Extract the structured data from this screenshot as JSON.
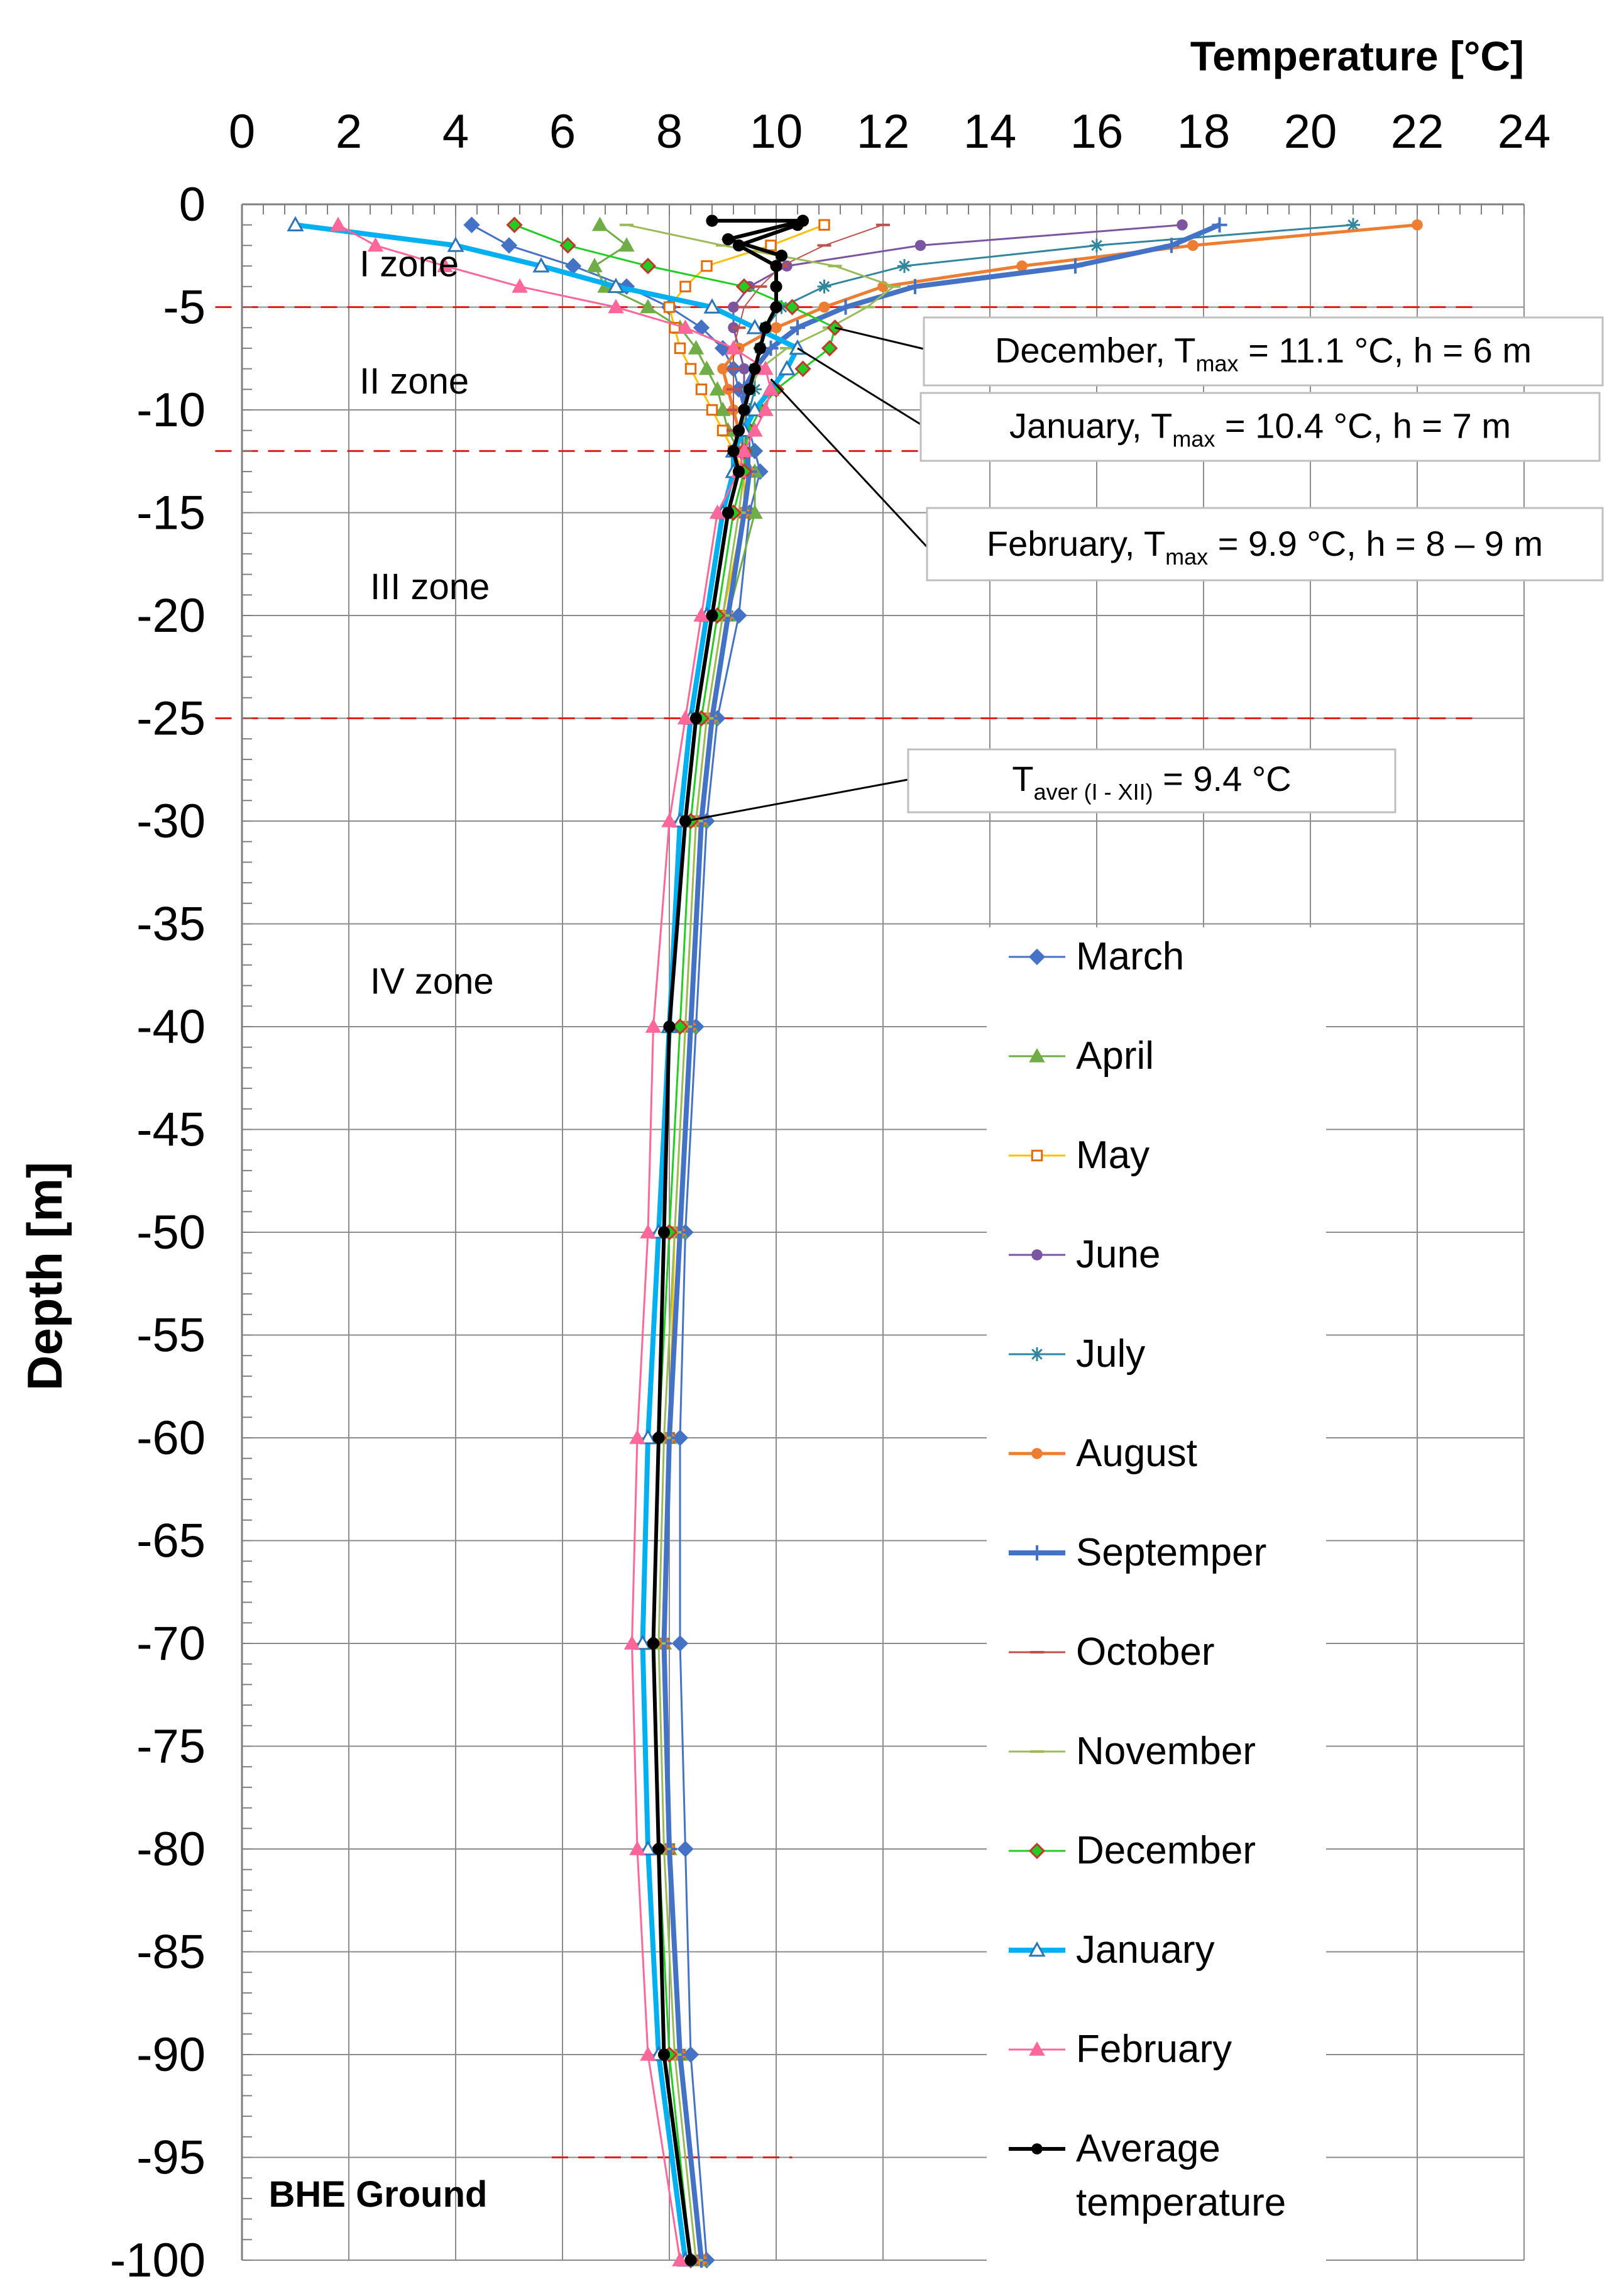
{
  "chart_data": {
    "type": "line",
    "title": "",
    "xlabel": "Temperature [°C]",
    "ylabel": "Depth  [m]",
    "xlim": [
      0,
      24
    ],
    "ylim": [
      -100,
      0
    ],
    "x_ticks": [
      "0",
      "2",
      "4",
      "6",
      "8",
      "10",
      "12",
      "14",
      "16",
      "18",
      "20",
      "22",
      "24"
    ],
    "y_ticks": [
      "0",
      "-5",
      "-10",
      "-15",
      "-20",
      "-25",
      "-30",
      "-35",
      "-40",
      "-45",
      "-50",
      "-55",
      "-60",
      "-65",
      "-70",
      "-75",
      "-80",
      "-85",
      "-90",
      "-95",
      "-100"
    ],
    "grid": true,
    "legend_position": "bottom-right",
    "zone_boundaries": [
      -5,
      -12,
      -25,
      -95
    ],
    "zones": [
      {
        "label": "I zone",
        "depth": -3.5,
        "temp": 2.2
      },
      {
        "label": "II zone",
        "depth": -9.2,
        "temp": 2.2
      },
      {
        "label": "III zone",
        "depth": -19.2,
        "temp": 2.4
      },
      {
        "label": "IV zone",
        "depth": -38.4,
        "temp": 2.4
      },
      {
        "label": "BHE Ground",
        "depth": -97.4,
        "temp": 0.5
      }
    ],
    "annotations": {
      "dec": {
        "pre": "December, T",
        "sub": "max",
        "post": " = 11.1 °C, h = 6 m",
        "depth": -6,
        "temp": 11.1
      },
      "jan": {
        "pre": "January, T",
        "sub": "max",
        "post": " = 10.4 °C, h = 7 m",
        "depth": -7,
        "temp": 10.4
      },
      "feb": {
        "pre": "February, T",
        "sub": "max",
        "post": " = 9.9 °C, h = 8 – 9 m",
        "depth": -8.5,
        "temp": 9.9
      },
      "avg": {
        "pre": "T",
        "sub": "aver (I - XII)",
        "post": " = 9.4 °C",
        "depth": -30,
        "temp": 8.3
      }
    },
    "depths": [
      -1,
      -2,
      -3,
      -4,
      -5,
      -6,
      -7,
      -8,
      -9,
      -10,
      -11,
      -12,
      -13,
      -15,
      -20,
      -25,
      -30,
      -40,
      -50,
      -60,
      -70,
      -80,
      -90,
      -100
    ],
    "series": [
      {
        "name": "March",
        "color": "#4472C4",
        "width": 3,
        "marker": "diamond",
        "temps": [
          4.3,
          5.0,
          6.2,
          7.2,
          8.0,
          8.6,
          9.0,
          9.2,
          9.3,
          9.4,
          9.5,
          9.6,
          9.7,
          9.5,
          9.3,
          8.9,
          8.7,
          8.5,
          8.3,
          8.2,
          8.2,
          8.3,
          8.4,
          8.7
        ]
      },
      {
        "name": "April",
        "color": "#70AD47",
        "width": 3,
        "marker": "triangle",
        "temps": [
          6.7,
          7.2,
          6.6,
          6.8,
          7.6,
          8.2,
          8.5,
          8.7,
          8.9,
          9.0,
          9.1,
          9.3,
          9.6,
          9.6,
          9.1,
          8.8,
          8.6,
          8.4,
          8.2,
          8.0,
          7.9,
          8.0,
          8.2,
          8.6
        ]
      },
      {
        "name": "May",
        "color": "#FFC000",
        "width": 3,
        "marker": "square",
        "temps": [
          10.9,
          9.9,
          8.7,
          8.3,
          8.0,
          8.1,
          8.2,
          8.4,
          8.6,
          8.8,
          9.0,
          9.2,
          9.4,
          9.4,
          9.0,
          8.7,
          8.5,
          8.3,
          8.1,
          8.0,
          7.9,
          8.0,
          8.2,
          8.6
        ]
      },
      {
        "name": "June",
        "color": "#7B559F",
        "width": 3,
        "marker": "dot",
        "temps": [
          17.6,
          12.7,
          10.2,
          9.5,
          9.2,
          9.2,
          9.3,
          9.4,
          9.4,
          9.4,
          9.4,
          9.4,
          9.5,
          9.4,
          9.1,
          8.8,
          8.6,
          8.4,
          8.2,
          8.0,
          7.9,
          8.0,
          8.2,
          8.6
        ]
      },
      {
        "name": "July",
        "color": "#31859C",
        "width": 3,
        "marker": "star",
        "temps": [
          20.8,
          16.0,
          12.4,
          10.9,
          10.1,
          9.8,
          9.7,
          9.6,
          9.6,
          9.5,
          9.5,
          9.5,
          9.5,
          9.4,
          9.1,
          8.8,
          8.6,
          8.4,
          8.2,
          8.0,
          7.9,
          8.0,
          8.2,
          8.6
        ]
      },
      {
        "name": "August",
        "color": "#ED7D31",
        "width": 5,
        "marker": "dot",
        "temps": [
          22.0,
          17.8,
          14.6,
          12.0,
          10.9,
          10.0,
          9.3,
          9.0,
          9.1,
          9.2,
          9.3,
          9.4,
          9.5,
          9.4,
          9.1,
          8.8,
          8.6,
          8.4,
          8.2,
          8.0,
          7.9,
          8.0,
          8.2,
          8.6
        ]
      },
      {
        "name": "Septemper",
        "color": "#4472C4",
        "width": 8,
        "marker": "plus",
        "temps": [
          18.3,
          17.4,
          15.6,
          12.6,
          11.3,
          10.4,
          9.9,
          9.6,
          9.4,
          9.4,
          9.4,
          9.4,
          9.5,
          9.4,
          9.1,
          8.8,
          8.6,
          8.4,
          8.2,
          8.0,
          7.9,
          8.0,
          8.2,
          8.6
        ]
      },
      {
        "name": "October",
        "color": "#C0504D",
        "width": 2,
        "marker": "dash",
        "temps": [
          12.0,
          10.9,
          10.1,
          9.7,
          9.4,
          9.3,
          9.2,
          9.2,
          9.2,
          9.2,
          9.2,
          9.3,
          9.4,
          9.3,
          9.0,
          8.7,
          8.5,
          8.3,
          8.1,
          7.9,
          7.8,
          7.9,
          8.1,
          8.5
        ]
      },
      {
        "name": "November",
        "color": "#9BBB59",
        "width": 3,
        "marker": "dash",
        "temps": [
          7.2,
          9.0,
          11.1,
          12.2,
          11.7,
          11.0,
          10.2,
          9.7,
          9.5,
          9.4,
          9.4,
          9.4,
          9.4,
          9.3,
          9.0,
          8.7,
          8.5,
          8.3,
          8.1,
          7.9,
          7.8,
          7.9,
          8.1,
          8.5
        ]
      },
      {
        "name": "December",
        "color": "#22CC22",
        "width": 3,
        "marker": "diamond",
        "temps": [
          5.1,
          6.1,
          7.6,
          9.4,
          10.3,
          11.1,
          11.0,
          10.5,
          10.0,
          9.7,
          9.5,
          9.4,
          9.4,
          9.2,
          8.9,
          8.6,
          8.4,
          8.2,
          8.0,
          7.8,
          7.7,
          7.8,
          8.0,
          8.4
        ]
      },
      {
        "name": "January",
        "color": "#00B0F0",
        "width": 8,
        "marker": "triangle-open",
        "temps": [
          1.0,
          4.0,
          5.6,
          7.0,
          8.8,
          9.6,
          10.4,
          10.2,
          9.9,
          9.6,
          9.4,
          9.2,
          9.2,
          9.0,
          8.7,
          8.4,
          8.2,
          8.0,
          7.8,
          7.6,
          7.5,
          7.6,
          7.8,
          8.3
        ]
      },
      {
        "name": "February",
        "color": "#FF6699",
        "width": 3,
        "marker": "triangle",
        "temps": [
          1.8,
          2.5,
          3.8,
          5.2,
          7.0,
          8.3,
          9.2,
          9.8,
          9.9,
          9.8,
          9.6,
          9.4,
          9.3,
          8.9,
          8.6,
          8.3,
          8.0,
          7.7,
          7.6,
          7.4,
          7.3,
          7.4,
          7.6,
          8.2
        ]
      },
      {
        "name": "Average temperature",
        "legend_lines": [
          "Average",
          "temperature"
        ],
        "color": "#000000",
        "width": 6,
        "marker": "dot",
        "temps": [
          10.4,
          9.3,
          10.0,
          10.0,
          10.0,
          9.8,
          9.7,
          9.6,
          9.5,
          9.4,
          9.3,
          9.2,
          9.3,
          9.1,
          8.8,
          8.5,
          8.3,
          8.0,
          7.9,
          7.8,
          7.7,
          7.8,
          7.9,
          8.4
        ]
      }
    ],
    "average_top": {
      "depths": [
        -0.8,
        -0.8,
        -1.7,
        -2.5
      ],
      "temps": [
        8.8,
        10.5,
        9.1,
        10.1
      ]
    }
  }
}
